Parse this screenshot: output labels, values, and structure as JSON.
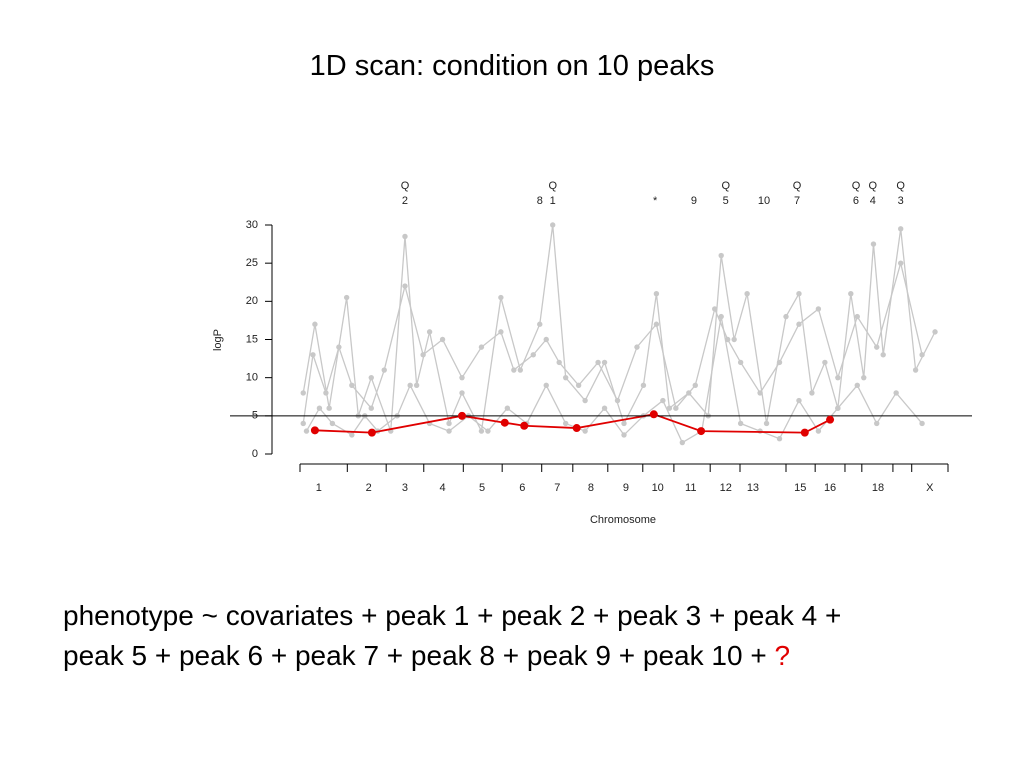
{
  "chart_data": {
    "type": "line",
    "title": "1D scan: condition on 10 peaks",
    "x_label": "Chromosome",
    "y_label": "logP",
    "xlim": [
      0,
      100
    ],
    "ylim": [
      0,
      30
    ],
    "yticks": [
      0,
      5,
      10,
      15,
      20,
      25,
      30
    ],
    "xticks": [
      {
        "value": 2.9,
        "label": "1"
      },
      {
        "value": 10.6,
        "label": "2"
      },
      {
        "value": 16.2,
        "label": "3"
      },
      {
        "value": 22.0,
        "label": "4"
      },
      {
        "value": 28.1,
        "label": "5"
      },
      {
        "value": 34.3,
        "label": "6"
      },
      {
        "value": 39.7,
        "label": "7"
      },
      {
        "value": 44.9,
        "label": "8"
      },
      {
        "value": 50.3,
        "label": "9"
      },
      {
        "value": 55.2,
        "label": "10"
      },
      {
        "value": 60.3,
        "label": "11"
      },
      {
        "value": 65.7,
        "label": "12"
      },
      {
        "value": 69.9,
        "label": "13"
      },
      {
        "value": 77.2,
        "label": "15"
      },
      {
        "value": 81.8,
        "label": "16"
      },
      {
        "value": 89.2,
        "label": "18"
      },
      {
        "value": 97.2,
        "label": "X"
      }
    ],
    "chromosome_boundaries": [
      0,
      7.3,
      13.3,
      19.1,
      25.2,
      31.2,
      37.3,
      42.1,
      47.5,
      52.9,
      57.7,
      63.3,
      67.9,
      75.0,
      79.5,
      84.1,
      86.7,
      91.5,
      94.4,
      100
    ],
    "threshold": 5,
    "annotations": [
      {
        "x": 16.2,
        "text": [
          "Q",
          "2"
        ]
      },
      {
        "x": 37.0,
        "text": [
          "8"
        ]
      },
      {
        "x": 39.0,
        "text": [
          "Q",
          "1"
        ]
      },
      {
        "x": 54.8,
        "text": [
          "*"
        ]
      },
      {
        "x": 60.8,
        "text": [
          "9"
        ]
      },
      {
        "x": 65.7,
        "text": [
          "Q",
          "5"
        ]
      },
      {
        "x": 71.6,
        "text": [
          "10"
        ]
      },
      {
        "x": 76.7,
        "text": [
          "Q",
          "7"
        ]
      },
      {
        "x": 85.8,
        "text": [
          "Q",
          "6"
        ]
      },
      {
        "x": 88.4,
        "text": [
          "Q",
          "4"
        ]
      },
      {
        "x": 92.7,
        "text": [
          "Q",
          "3"
        ]
      }
    ],
    "series": [
      {
        "color": "#c8c8c8",
        "x": [
          0.5,
          2.3,
          4.5,
          7.2,
          9,
          11,
          14,
          16.2,
          18,
          20,
          23,
          25,
          28,
          31,
          34,
          37,
          39,
          41,
          44,
          47,
          50,
          53,
          55,
          57,
          60,
          63,
          65,
          67,
          69,
          72,
          75,
          77,
          79,
          81,
          83,
          85,
          87,
          88.5,
          90,
          92.7,
          95,
          98
        ],
        "values": [
          8,
          17,
          6,
          20.5,
          5,
          10,
          3,
          28.5,
          9,
          16,
          4,
          8,
          3,
          20.5,
          11,
          17,
          30,
          10,
          7,
          12,
          4,
          9,
          21,
          6,
          8,
          5,
          26,
          15,
          21,
          4,
          18,
          21,
          8,
          12,
          6,
          21,
          10,
          27.5,
          13,
          29.5,
          11,
          16
        ]
      },
      {
        "color": "#c8c8c8",
        "x": [
          0.5,
          2,
          4,
          6,
          8,
          11,
          13,
          16.2,
          19,
          22,
          25,
          28,
          31,
          33,
          36,
          38,
          40,
          43,
          46,
          49,
          52,
          55,
          58,
          61,
          64,
          66,
          68,
          71,
          74,
          77,
          80,
          83,
          86,
          89,
          92.7,
          96
        ],
        "values": [
          4,
          13,
          8,
          14,
          9,
          6,
          11,
          22,
          13,
          15,
          10,
          14,
          16,
          11,
          13,
          15,
          12,
          9,
          12,
          7,
          14,
          17,
          6,
          9,
          19,
          15,
          12,
          8,
          12,
          17,
          19,
          10,
          18,
          14,
          25,
          13
        ]
      },
      {
        "color": "#c8c8c8",
        "x": [
          1,
          3,
          5,
          8,
          10,
          12,
          15,
          17,
          20,
          23,
          26,
          29,
          32,
          35,
          38,
          41,
          44,
          47,
          50,
          53,
          56,
          59,
          62,
          65,
          68,
          71,
          74,
          77,
          80,
          83,
          86,
          89,
          92,
          96
        ],
        "values": [
          3,
          6,
          4,
          2.5,
          5,
          3,
          5,
          9,
          4,
          3,
          5,
          3,
          6,
          4,
          9,
          4,
          3,
          6,
          2.5,
          5,
          7,
          1.5,
          3,
          18,
          4,
          3,
          2,
          7,
          3,
          6,
          9,
          4,
          8,
          4
        ]
      },
      {
        "color": "#e00000",
        "x": [
          2.3,
          11.1,
          25.0,
          31.6,
          34.6,
          42.7,
          54.6,
          61.9,
          77.9,
          81.8
        ],
        "values": [
          3.1,
          2.8,
          5.0,
          4.1,
          3.7,
          3.4,
          5.2,
          3.0,
          2.8,
          4.5
        ]
      }
    ],
    "body_text": "phenotype ~ covariates + peak 1 + peak 2 + peak 3 + peak 4 + peak 5 + peak 6 + peak 7 + peak 8 + peak 9 + peak 10 +",
    "question": "?"
  }
}
